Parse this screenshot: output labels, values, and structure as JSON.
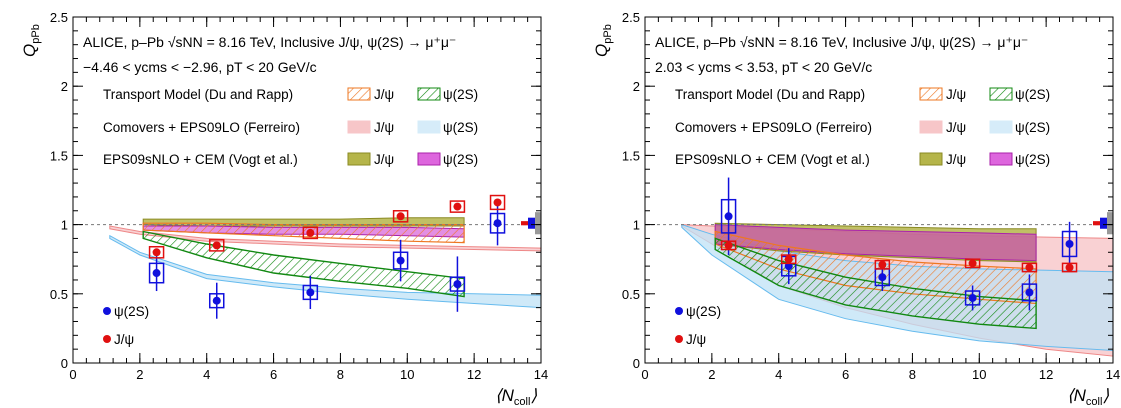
{
  "chart_data": [
    {
      "type": "scatter",
      "info_lines": [
        "ALICE, p–Pb √sNN = 8.16 TeV, Inclusive J/ψ, ψ(2S) → μ⁺μ⁻",
        "−4.46 < ycms < −2.96, pT < 20 GeV/c"
      ],
      "ylabel": "Q_pPb",
      "xlabel": "⟨N_coll⟩",
      "xlim": [
        0,
        14
      ],
      "ylim": [
        0,
        2.5
      ],
      "x_ticks": [
        "0",
        "2",
        "4",
        "6",
        "8",
        "10",
        "12",
        "14"
      ],
      "y_ticks": [
        "0",
        "0.5",
        "1",
        "1.5",
        "2",
        "2.5"
      ],
      "reference_line": 1,
      "model_labels": {
        "transport": "Transport Model (Du and Rapp)",
        "comovers": "Comovers + EPS09LO (Ferreiro)",
        "eps": "EPS09sNLO + CEM (Vogt et al.)",
        "jpsi": "J/ψ",
        "psi2s": "ψ(2S)"
      },
      "marker_labels": {
        "psi2s": "ψ(2S)",
        "jpsi": "J/ψ"
      },
      "series": [
        {
          "name": "ψ(2S)",
          "color": "#1010dd",
          "x": [
            2.5,
            4.3,
            7.1,
            9.8,
            11.5,
            12.7
          ],
          "y": [
            0.65,
            0.45,
            0.51,
            0.74,
            0.57,
            1.01
          ],
          "err_stat": [
            0.13,
            0.13,
            0.12,
            0.15,
            0.2,
            0.16
          ],
          "err_sys": [
            0.07,
            0.05,
            0.05,
            0.06,
            0.05,
            0.07
          ]
        },
        {
          "name": "J/ψ",
          "color": "#e01010",
          "x": [
            2.5,
            4.3,
            7.1,
            9.8,
            11.5,
            12.7
          ],
          "y": [
            0.8,
            0.85,
            0.94,
            1.06,
            1.13,
            1.16
          ],
          "err_stat": [
            0.01,
            0.01,
            0.01,
            0.01,
            0.01,
            0.02
          ],
          "err_sys": [
            0.04,
            0.04,
            0.04,
            0.04,
            0.04,
            0.05
          ]
        }
      ],
      "bands": [
        {
          "model": "Comovers J/ψ",
          "color": "#f7c6c8",
          "x": [
            1.1,
            2,
            4,
            6,
            8,
            10,
            12,
            14
          ],
          "lo": [
            0.97,
            0.93,
            0.88,
            0.86,
            0.84,
            0.83,
            0.82,
            0.81
          ],
          "hi": [
            0.99,
            0.95,
            0.9,
            0.88,
            0.86,
            0.85,
            0.84,
            0.83
          ]
        },
        {
          "model": "Comovers ψ(2S)",
          "color": "#bfe2f6",
          "x": [
            1.1,
            2,
            4,
            6,
            8,
            10,
            12,
            14
          ],
          "lo": [
            0.9,
            0.78,
            0.61,
            0.55,
            0.5,
            0.46,
            0.43,
            0.4
          ],
          "hi": [
            0.92,
            0.8,
            0.64,
            0.58,
            0.54,
            0.51,
            0.5,
            0.49
          ]
        },
        {
          "model": "EPS09sNLO J/ψ",
          "color": "#b5b54a",
          "x": [
            2.1,
            4,
            6,
            8,
            10,
            11.7
          ],
          "lo": [
            1.0,
            0.99,
            0.99,
            0.99,
            0.99,
            0.99
          ],
          "hi": [
            1.04,
            1.04,
            1.04,
            1.04,
            1.05,
            1.05
          ]
        },
        {
          "model": "EPS09sNLO ψ(2S)",
          "color": "#cc33cc",
          "x": [
            2.1,
            4,
            6,
            8,
            10,
            11.7
          ],
          "lo": [
            0.96,
            0.94,
            0.93,
            0.93,
            0.92,
            0.91
          ],
          "hi": [
            0.99,
            0.99,
            0.98,
            0.98,
            0.98,
            0.97
          ]
        },
        {
          "model": "Transport J/ψ",
          "color": "#ee7722",
          "x": [
            2.1,
            4,
            6,
            8,
            10,
            11.7
          ],
          "lo": [
            0.96,
            0.94,
            0.92,
            0.9,
            0.88,
            0.87
          ],
          "hi": [
            1.01,
            1.01,
            1.0,
            1.0,
            1.0,
            1.0
          ]
        },
        {
          "model": "Transport ψ(2S)",
          "color": "#118811",
          "x": [
            2.1,
            4,
            6,
            8,
            10,
            11.7
          ],
          "lo": [
            0.9,
            0.76,
            0.65,
            0.59,
            0.54,
            0.48
          ],
          "hi": [
            0.95,
            0.86,
            0.78,
            0.72,
            0.66,
            0.61
          ]
        }
      ],
      "global_boxes": [
        {
          "color": "#1010dd",
          "lo": 0.97,
          "hi": 1.05
        },
        {
          "color": "#e01010",
          "lo": 0.995,
          "hi": 1.025
        },
        {
          "color": "#999999",
          "lo": 0.93,
          "hi": 1.09
        }
      ]
    },
    {
      "type": "scatter",
      "info_lines": [
        "ALICE, p–Pb √sNN = 8.16 TeV, Inclusive J/ψ, ψ(2S) → μ⁺μ⁻",
        "2.03 < ycms < 3.53, pT < 20 GeV/c"
      ],
      "ylabel": "Q_pPb",
      "xlabel": "⟨N_coll⟩",
      "xlim": [
        0,
        14
      ],
      "ylim": [
        0,
        2.5
      ],
      "x_ticks": [
        "0",
        "2",
        "4",
        "6",
        "8",
        "10",
        "12",
        "14"
      ],
      "y_ticks": [
        "0",
        "0.5",
        "1",
        "1.5",
        "2",
        "2.5"
      ],
      "reference_line": 1,
      "model_labels": {
        "transport": "Transport Model (Du and Rapp)",
        "comovers": "Comovers + EPS09LO (Ferreiro)",
        "eps": "EPS09sNLO + CEM (Vogt et al.)",
        "jpsi": "J/ψ",
        "psi2s": "ψ(2S)"
      },
      "marker_labels": {
        "psi2s": "ψ(2S)",
        "jpsi": "J/ψ"
      },
      "series": [
        {
          "name": "ψ(2S)",
          "color": "#1010dd",
          "x": [
            2.5,
            4.3,
            7.1,
            9.8,
            11.5,
            12.7
          ],
          "y": [
            1.06,
            0.7,
            0.62,
            0.47,
            0.51,
            0.86
          ],
          "err_stat": [
            0.28,
            0.13,
            0.1,
            0.09,
            0.13,
            0.16
          ],
          "err_sys": [
            0.12,
            0.07,
            0.06,
            0.05,
            0.06,
            0.09
          ]
        },
        {
          "name": "J/ψ",
          "color": "#e01010",
          "x": [
            2.5,
            4.3,
            7.1,
            9.8,
            11.5,
            12.7
          ],
          "y": [
            0.85,
            0.75,
            0.71,
            0.72,
            0.69,
            0.69
          ],
          "err_stat": [
            0.01,
            0.01,
            0.01,
            0.01,
            0.01,
            0.01
          ],
          "err_sys": [
            0.03,
            0.03,
            0.03,
            0.03,
            0.03,
            0.03
          ]
        }
      ],
      "bands": [
        {
          "model": "Comovers J/ψ",
          "color": "#f7c6c8",
          "x": [
            1.1,
            2,
            4,
            6,
            8,
            10,
            12,
            14
          ],
          "lo": [
            0.99,
            0.86,
            0.56,
            0.4,
            0.28,
            0.18,
            0.1,
            0.05
          ],
          "hi": [
            1.0,
            0.99,
            0.97,
            0.95,
            0.93,
            0.92,
            0.91,
            0.9
          ]
        },
        {
          "model": "Comovers ψ(2S)",
          "color": "#bfe2f6",
          "x": [
            1.1,
            2,
            4,
            6,
            8,
            10,
            12,
            14
          ],
          "lo": [
            0.98,
            0.78,
            0.46,
            0.32,
            0.23,
            0.16,
            0.12,
            0.09
          ],
          "hi": [
            1.0,
            0.93,
            0.81,
            0.74,
            0.7,
            0.68,
            0.67,
            0.66
          ]
        },
        {
          "model": "EPS09sNLO J/ψ",
          "color": "#b5b54a",
          "x": [
            2.1,
            4,
            6,
            8,
            10,
            11.7
          ],
          "lo": [
            0.86,
            0.81,
            0.78,
            0.76,
            0.74,
            0.73
          ],
          "hi": [
            1.01,
            1.0,
            0.99,
            0.98,
            0.97,
            0.97
          ]
        },
        {
          "model": "EPS09sNLO ψ(2S)",
          "color": "#cc33cc",
          "x": [
            2.1,
            4,
            6,
            8,
            10,
            11.7
          ],
          "lo": [
            0.86,
            0.82,
            0.79,
            0.77,
            0.75,
            0.74
          ],
          "hi": [
            1.0,
            0.98,
            0.96,
            0.95,
            0.94,
            0.93
          ]
        },
        {
          "model": "Transport J/ψ",
          "color": "#ee7722",
          "x": [
            2.1,
            4,
            6,
            8,
            10,
            11.7
          ],
          "lo": [
            0.86,
            0.68,
            0.56,
            0.5,
            0.46,
            0.43
          ],
          "hi": [
            0.95,
            0.85,
            0.78,
            0.73,
            0.7,
            0.68
          ]
        },
        {
          "model": "Transport ψ(2S)",
          "color": "#118811",
          "x": [
            2.1,
            4,
            6,
            8,
            10,
            11.7
          ],
          "lo": [
            0.82,
            0.56,
            0.42,
            0.34,
            0.28,
            0.25
          ],
          "hi": [
            0.9,
            0.74,
            0.62,
            0.54,
            0.48,
            0.45
          ]
        }
      ],
      "global_boxes": [
        {
          "color": "#1010dd",
          "lo": 0.97,
          "hi": 1.05
        },
        {
          "color": "#e01010",
          "lo": 0.995,
          "hi": 1.025
        },
        {
          "color": "#999999",
          "lo": 0.93,
          "hi": 1.09
        }
      ]
    }
  ]
}
